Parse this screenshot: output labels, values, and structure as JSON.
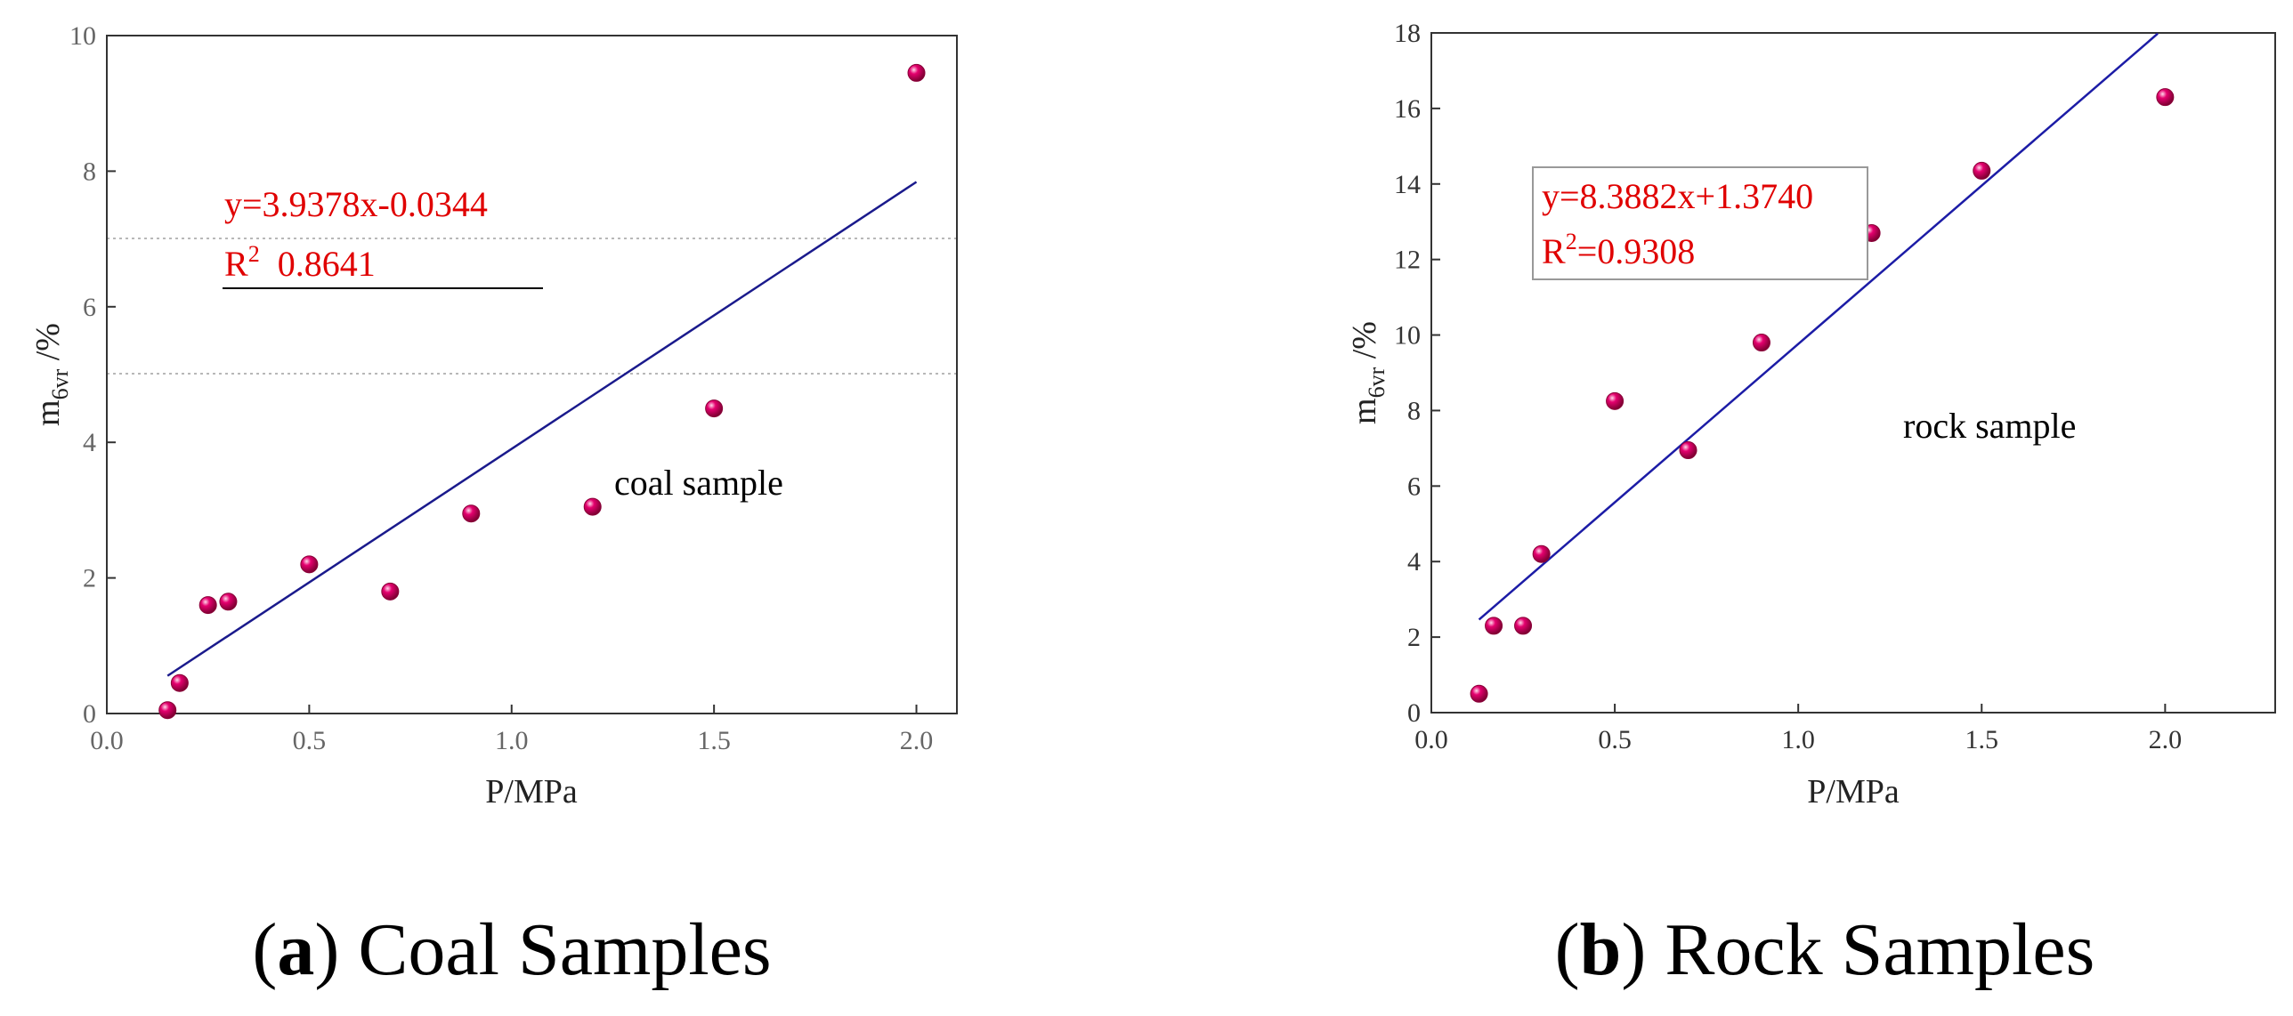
{
  "chart_data": [
    {
      "type": "scatter",
      "panel_label": "a",
      "caption": "Coal Samples",
      "xlabel": "P/MPa",
      "ylabel": {
        "base": "m",
        "sub": "6vr",
        "suffix": " /%"
      },
      "xlim": [
        0.0,
        2.1
      ],
      "ylim": [
        0,
        10
      ],
      "xticks": [
        "0.0",
        "0.5",
        "1.0",
        "1.5",
        "2.0"
      ],
      "yticks": [
        "0",
        "2",
        "4",
        "6",
        "8",
        "10"
      ],
      "grid": "false",
      "series": [
        {
          "name": "coal sample",
          "points": [
            {
              "x": 0.15,
              "y": 0.05
            },
            {
              "x": 0.18,
              "y": 0.45
            },
            {
              "x": 0.25,
              "y": 1.6
            },
            {
              "x": 0.3,
              "y": 1.65
            },
            {
              "x": 0.5,
              "y": 2.2
            },
            {
              "x": 0.7,
              "y": 1.8
            },
            {
              "x": 0.9,
              "y": 2.95
            },
            {
              "x": 1.2,
              "y": 3.05
            },
            {
              "x": 1.5,
              "y": 4.5
            },
            {
              "x": 2.0,
              "y": 9.45
            }
          ]
        }
      ],
      "fit": {
        "slope": 3.9378,
        "intercept": -0.0344,
        "x_range": [
          0.15,
          2.0
        ]
      },
      "annotations": {
        "equation": "y=3.9378x-0.0344",
        "r2_base": "R",
        "r2_sup": "2",
        "r2_value": "0.8641",
        "sample_label": "coal sample"
      }
    },
    {
      "type": "scatter",
      "panel_label": "b",
      "caption": "Rock Samples",
      "xlabel": "P/MPa",
      "ylabel": {
        "base": "m",
        "sub": "6vr",
        "suffix": " /%"
      },
      "xlim": [
        0.0,
        2.3
      ],
      "ylim": [
        0,
        18
      ],
      "xticks": [
        "0.0",
        "0.5",
        "1.0",
        "1.5",
        "2.0"
      ],
      "yticks": [
        "0",
        "2",
        "4",
        "6",
        "8",
        "10",
        "12",
        "14",
        "16",
        "18"
      ],
      "grid": "false",
      "series": [
        {
          "name": "rock sample",
          "points": [
            {
              "x": 0.13,
              "y": 0.5
            },
            {
              "x": 0.17,
              "y": 2.3
            },
            {
              "x": 0.25,
              "y": 2.3
            },
            {
              "x": 0.3,
              "y": 4.2
            },
            {
              "x": 0.5,
              "y": 8.25
            },
            {
              "x": 0.7,
              "y": 6.95
            },
            {
              "x": 0.9,
              "y": 9.8
            },
            {
              "x": 1.2,
              "y": 12.7
            },
            {
              "x": 1.5,
              "y": 14.35
            },
            {
              "x": 2.0,
              "y": 16.3
            }
          ]
        }
      ],
      "fit": {
        "slope": 8.3882,
        "intercept": 1.374,
        "x_range": [
          0.13,
          1.98
        ]
      },
      "annotations": {
        "equation": "y=8.3882x+1.3740",
        "r2_base": "R",
        "r2_sup": "2",
        "r2_value": "=0.9308",
        "sample_label": "rock sample"
      }
    }
  ]
}
